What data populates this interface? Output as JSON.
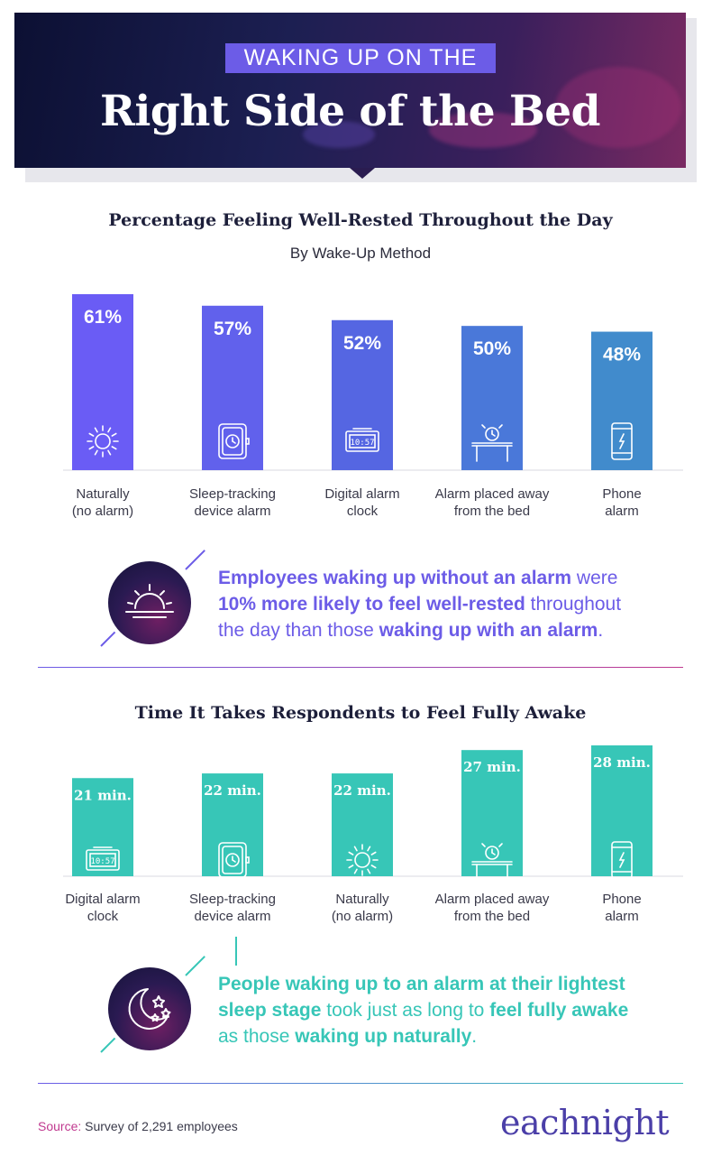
{
  "header": {
    "kicker": "WAKING UP ON THE",
    "headline": "Right Side of the Bed"
  },
  "chart_data": [
    {
      "type": "bar",
      "title": "Percentage Feeling Well-Rested Throughout the Day",
      "subtitle": "By Wake-Up Method",
      "categories": [
        "Naturally\n(no alarm)",
        "Sleep-tracking\ndevice alarm",
        "Digital alarm\nclock",
        "Alarm placed away\nfrom the bed",
        "Phone\nalarm"
      ],
      "values": [
        61,
        57,
        52,
        50,
        48
      ],
      "value_labels": [
        "61%",
        "57%",
        "52%",
        "50%",
        "48%"
      ],
      "icons": [
        "sun-icon",
        "watch-icon",
        "digital-clock-icon",
        "alarm-table-icon",
        "phone-icon"
      ],
      "colors": [
        "#6a5cf5",
        "#6161ec",
        "#5566e2",
        "#4a78d9",
        "#418bcc"
      ],
      "ylim": [
        0,
        61
      ]
    },
    {
      "type": "bar",
      "title": "Time It Takes Respondents to Feel Fully Awake",
      "categories": [
        "Digital alarm\nclock",
        "Sleep-tracking\ndevice alarm",
        "Naturally\n(no alarm)",
        "Alarm placed away\nfrom the bed",
        "Phone\nalarm"
      ],
      "values": [
        21,
        22,
        22,
        27,
        28
      ],
      "value_labels": [
        "21 min.",
        "22 min.",
        "22 min.",
        "27 min.",
        "28 min."
      ],
      "icons": [
        "digital-clock-icon",
        "watch-icon",
        "sun-icon",
        "alarm-table-icon",
        "phone-icon"
      ],
      "colors": [
        "#37c6b7",
        "#37c6b7",
        "#37c6b7",
        "#37c6b7",
        "#37c6b7"
      ],
      "ylim": [
        0,
        28
      ]
    }
  ],
  "callout_1": {
    "p1": "Employees waking up without an alarm",
    "p2": " were ",
    "p3": "10% more likely to feel well-rested",
    "p4": " throughout the day than those ",
    "p5": "waking up with an alarm",
    "p6": "."
  },
  "callout_2": {
    "p1": "People waking up to an alarm at their lightest sleep stage",
    "p2": " took just as long to ",
    "p3": "feel fully awake",
    "p4": " as those ",
    "p5": "waking up naturally",
    "p6": "."
  },
  "footer": {
    "source_label": "Source:",
    "source_text": " Survey of 2,291 employees",
    "logo": "eachnight"
  },
  "colors": {
    "accent_purple": "#6c5ce7",
    "accent_teal": "#37c6b7",
    "magenta": "#c0398f"
  }
}
